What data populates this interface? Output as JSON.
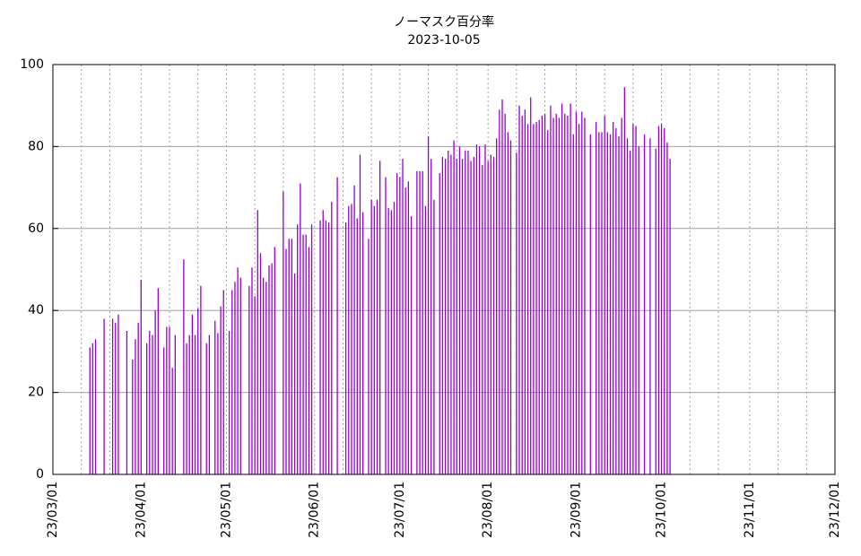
{
  "chart_data": {
    "type": "impulse",
    "title": "ノーマスク百分率",
    "subtitle": "2023-10-05",
    "color": "#9400d3",
    "grid": true,
    "xlim": [
      "23/03/01",
      "23/12/01"
    ],
    "xticks": [
      "23/03/01",
      "23/04/01",
      "23/05/01",
      "23/06/01",
      "23/07/01",
      "23/08/01",
      "23/09/01",
      "23/10/01",
      "23/11/01",
      "23/12/01"
    ],
    "x_minor_ticks": [
      "23/03/11",
      "23/03/21",
      "23/04/11",
      "23/04/21",
      "23/05/11",
      "23/05/21",
      "23/06/11",
      "23/06/21",
      "23/07/11",
      "23/07/21",
      "23/08/11",
      "23/08/21",
      "23/09/11",
      "23/09/21",
      "23/10/11",
      "23/10/21",
      "23/11/11",
      "23/11/21"
    ],
    "ylim": [
      0,
      100
    ],
    "yticks": [
      0,
      20,
      40,
      60,
      80,
      100
    ],
    "x": [
      "23/03/14",
      "23/03/15",
      "23/03/16",
      "23/03/19",
      "23/03/22",
      "23/03/23",
      "23/03/24",
      "23/03/27",
      "23/03/29",
      "23/03/30",
      "23/03/31",
      "23/04/01",
      "23/04/03",
      "23/04/04",
      "23/04/05",
      "23/04/06",
      "23/04/07",
      "23/04/09",
      "23/04/10",
      "23/04/11",
      "23/04/12",
      "23/04/13",
      "23/04/16",
      "23/04/17",
      "23/04/18",
      "23/04/19",
      "23/04/20",
      "23/04/21",
      "23/04/22",
      "23/04/24",
      "23/04/25",
      "23/04/27",
      "23/04/28",
      "23/04/29",
      "23/04/30",
      "23/05/02",
      "23/05/03",
      "23/05/04",
      "23/05/05",
      "23/05/06",
      "23/05/09",
      "23/05/10",
      "23/05/11",
      "23/05/12",
      "23/05/13",
      "23/05/14",
      "23/05/15",
      "23/05/16",
      "23/05/17",
      "23/05/18",
      "23/05/21",
      "23/05/22",
      "23/05/23",
      "23/05/24",
      "23/05/25",
      "23/05/26",
      "23/05/27",
      "23/05/28",
      "23/05/29",
      "23/05/30",
      "23/05/31",
      "23/06/03",
      "23/06/04",
      "23/06/05",
      "23/06/06",
      "23/06/07",
      "23/06/09",
      "23/06/12",
      "23/06/13",
      "23/06/14",
      "23/06/15",
      "23/06/16",
      "23/06/17",
      "23/06/18",
      "23/06/20",
      "23/06/21",
      "23/06/22",
      "23/06/23",
      "23/06/24",
      "23/06/26",
      "23/06/27",
      "23/06/28",
      "23/06/29",
      "23/06/30",
      "23/07/01",
      "23/07/02",
      "23/07/03",
      "23/07/04",
      "23/07/05",
      "23/07/07",
      "23/07/08",
      "23/07/09",
      "23/07/10",
      "23/07/11",
      "23/07/12",
      "23/07/13",
      "23/07/15",
      "23/07/16",
      "23/07/17",
      "23/07/18",
      "23/07/19",
      "23/07/20",
      "23/07/21",
      "23/07/22",
      "23/07/23",
      "23/07/24",
      "23/07/25",
      "23/07/26",
      "23/07/27",
      "23/07/28",
      "23/07/29",
      "23/07/30",
      "23/07/31",
      "23/08/01",
      "23/08/02",
      "23/08/03",
      "23/08/04",
      "23/08/05",
      "23/08/06",
      "23/08/07",
      "23/08/08",
      "23/08/09",
      "23/08/11",
      "23/08/12",
      "23/08/13",
      "23/08/14",
      "23/08/15",
      "23/08/16",
      "23/08/17",
      "23/08/18",
      "23/08/19",
      "23/08/20",
      "23/08/21",
      "23/08/22",
      "23/08/23",
      "23/08/24",
      "23/08/25",
      "23/08/26",
      "23/08/27",
      "23/08/28",
      "23/08/29",
      "23/08/30",
      "23/08/31",
      "23/09/01",
      "23/09/02",
      "23/09/03",
      "23/09/04",
      "23/09/06",
      "23/09/08",
      "23/09/09",
      "23/09/10",
      "23/09/11",
      "23/09/12",
      "23/09/13",
      "23/09/14",
      "23/09/15",
      "23/09/16",
      "23/09/17",
      "23/09/18",
      "23/09/19",
      "23/09/20",
      "23/09/21",
      "23/09/22",
      "23/09/23",
      "23/09/25",
      "23/09/27",
      "23/09/29",
      "23/09/30",
      "23/10/01",
      "23/10/02",
      "23/10/03",
      "23/10/04"
    ],
    "values": [
      31,
      32,
      33,
      38,
      38,
      37,
      39,
      35,
      28,
      33,
      37,
      47.5,
      32,
      35,
      34,
      40,
      45.5,
      31,
      36,
      36,
      26,
      34,
      52.5,
      32,
      34,
      39,
      34,
      40.5,
      46,
      32,
      34,
      37.5,
      34.5,
      41,
      45,
      35,
      45,
      47,
      50.5,
      48,
      46,
      50.5,
      43.5,
      64.5,
      54,
      48,
      47,
      51,
      51.5,
      55.5,
      69,
      55,
      57.5,
      57.5,
      49,
      61,
      71,
      58.5,
      58.5,
      55.5,
      61,
      62,
      64.5,
      62,
      61.5,
      66.5,
      72.5,
      61.5,
      65.5,
      66,
      70.5,
      62.5,
      78,
      64,
      57.5,
      67,
      65.5,
      67,
      76.5,
      72.5,
      65,
      64.5,
      66.5,
      73.5,
      72.5,
      77,
      70,
      71.5,
      63,
      74,
      74,
      74,
      65.5,
      82.5,
      77,
      67,
      73.5,
      77.5,
      77,
      79,
      78,
      81.5,
      77,
      80,
      77,
      79,
      79,
      76.5,
      77.5,
      80.5,
      80,
      75.5,
      80.5,
      76.5,
      78,
      77.5,
      82,
      89,
      91.5,
      88,
      83.5,
      81.5,
      78.5,
      90,
      87.5,
      89,
      85.5,
      92,
      85.5,
      86,
      86.5,
      87.5,
      88,
      84,
      90,
      87,
      88,
      87,
      90.5,
      88,
      87.5,
      90.5,
      83,
      88.5,
      85.5,
      88.5,
      87,
      83,
      86,
      83.5,
      83.5,
      87.5,
      83.5,
      83,
      86,
      84.5,
      82.5,
      87,
      94.5,
      82,
      79,
      85.5,
      85,
      80,
      83,
      82,
      79.5,
      85,
      85.5,
      84.5,
      81,
      77
    ]
  }
}
